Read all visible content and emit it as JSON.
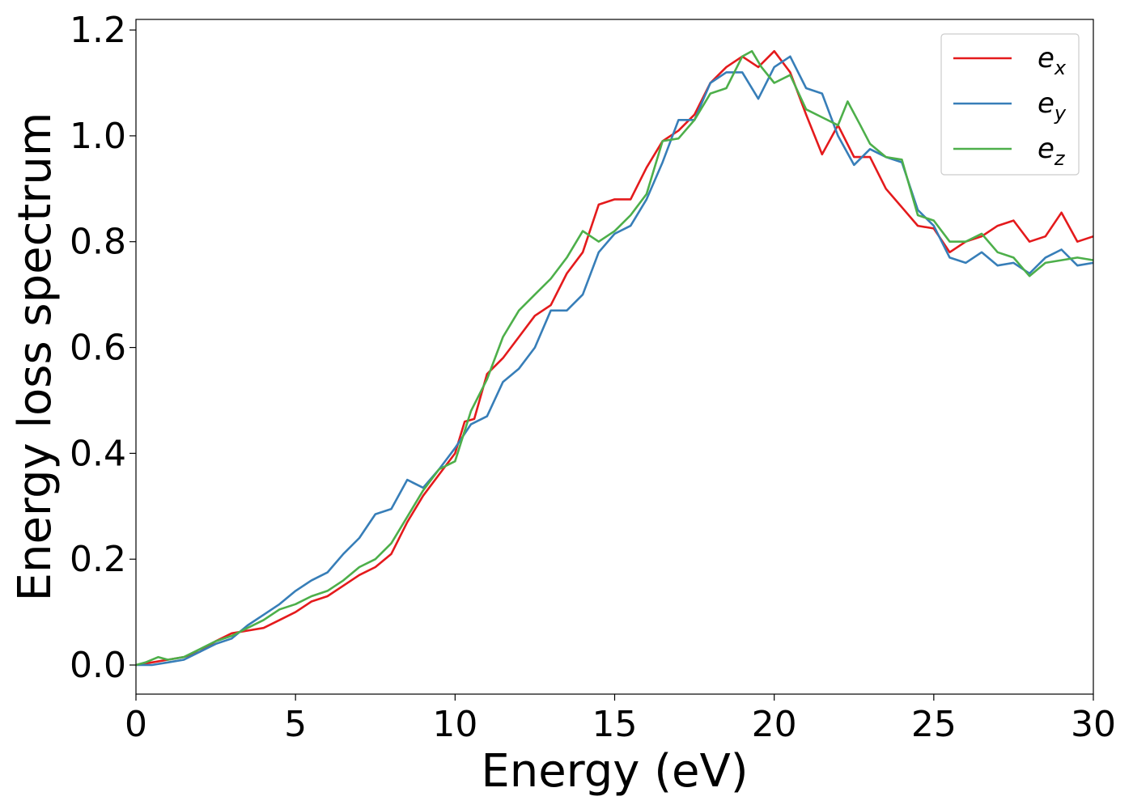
{
  "chart_data": {
    "type": "line",
    "xlabel": "Energy (eV)",
    "ylabel": "Energy loss spectrum",
    "xlim": [
      0,
      30
    ],
    "ylim": [
      -0.055,
      1.22
    ],
    "xticks": [
      0,
      5,
      10,
      15,
      20,
      25,
      30
    ],
    "yticks": [
      0.0,
      0.2,
      0.4,
      0.6,
      0.8,
      1.0,
      1.2
    ],
    "xtick_labels": [
      "0",
      "5",
      "10",
      "15",
      "20",
      "25",
      "30"
    ],
    "ytick_labels": [
      "0.0",
      "0.2",
      "0.4",
      "0.6",
      "0.8",
      "1.0",
      "1.2"
    ],
    "grid": false,
    "legend_position": "top-right",
    "series": [
      {
        "name": "e",
        "subscript": "x",
        "color": "#e41a1c",
        "points": [
          [
            0,
            0
          ],
          [
            0.5,
            0.005
          ],
          [
            1,
            0.01
          ],
          [
            1.5,
            0.015
          ],
          [
            2,
            0.025
          ],
          [
            2.5,
            0.045
          ],
          [
            3,
            0.06
          ],
          [
            3.5,
            0.065
          ],
          [
            4,
            0.07
          ],
          [
            4.5,
            0.085
          ],
          [
            5,
            0.1
          ],
          [
            5.5,
            0.12
          ],
          [
            6,
            0.13
          ],
          [
            6.5,
            0.15
          ],
          [
            7,
            0.17
          ],
          [
            7.5,
            0.185
          ],
          [
            8,
            0.21
          ],
          [
            8.5,
            0.27
          ],
          [
            9,
            0.32
          ],
          [
            9.5,
            0.36
          ],
          [
            10,
            0.4
          ],
          [
            10.3,
            0.46
          ],
          [
            10.6,
            0.465
          ],
          [
            11,
            0.55
          ],
          [
            11.5,
            0.58
          ],
          [
            12,
            0.62
          ],
          [
            12.5,
            0.66
          ],
          [
            13,
            0.68
          ],
          [
            13.5,
            0.74
          ],
          [
            14,
            0.78
          ],
          [
            14.5,
            0.87
          ],
          [
            15,
            0.88
          ],
          [
            15.5,
            0.88
          ],
          [
            16,
            0.94
          ],
          [
            16.5,
            0.99
          ],
          [
            17,
            1.01
          ],
          [
            17.5,
            1.04
          ],
          [
            18,
            1.1
          ],
          [
            18.5,
            1.13
          ],
          [
            19,
            1.15
          ],
          [
            19.5,
            1.13
          ],
          [
            20,
            1.16
          ],
          [
            20.5,
            1.12
          ],
          [
            21,
            1.04
          ],
          [
            21.5,
            0.965
          ],
          [
            22,
            1.02
          ],
          [
            22.5,
            0.96
          ],
          [
            23,
            0.96
          ],
          [
            23.5,
            0.9
          ],
          [
            24,
            0.865
          ],
          [
            24.5,
            0.83
          ],
          [
            25,
            0.825
          ],
          [
            25.5,
            0.78
          ],
          [
            26,
            0.8
          ],
          [
            26.5,
            0.81
          ],
          [
            27,
            0.83
          ],
          [
            27.5,
            0.84
          ],
          [
            28,
            0.8
          ],
          [
            28.5,
            0.81
          ],
          [
            29,
            0.855
          ],
          [
            29.5,
            0.8
          ],
          [
            30,
            0.81
          ]
        ]
      },
      {
        "name": "e",
        "subscript": "y",
        "color": "#377eb8",
        "points": [
          [
            0,
            0
          ],
          [
            0.5,
            0
          ],
          [
            1,
            0.005
          ],
          [
            1.5,
            0.01
          ],
          [
            2,
            0.025
          ],
          [
            2.5,
            0.04
          ],
          [
            3,
            0.05
          ],
          [
            3.5,
            0.075
          ],
          [
            4,
            0.095
          ],
          [
            4.5,
            0.115
          ],
          [
            5,
            0.14
          ],
          [
            5.5,
            0.16
          ],
          [
            6,
            0.175
          ],
          [
            6.5,
            0.21
          ],
          [
            7,
            0.24
          ],
          [
            7.5,
            0.285
          ],
          [
            8,
            0.295
          ],
          [
            8.5,
            0.35
          ],
          [
            9,
            0.335
          ],
          [
            9.5,
            0.37
          ],
          [
            10,
            0.41
          ],
          [
            10.5,
            0.455
          ],
          [
            11,
            0.47
          ],
          [
            11.5,
            0.535
          ],
          [
            12,
            0.56
          ],
          [
            12.5,
            0.6
          ],
          [
            13,
            0.67
          ],
          [
            13.5,
            0.67
          ],
          [
            14,
            0.7
          ],
          [
            14.5,
            0.78
          ],
          [
            15,
            0.815
          ],
          [
            15.5,
            0.83
          ],
          [
            16,
            0.88
          ],
          [
            16.5,
            0.95
          ],
          [
            17,
            1.03
          ],
          [
            17.5,
            1.03
          ],
          [
            18,
            1.1
          ],
          [
            18.5,
            1.12
          ],
          [
            19,
            1.12
          ],
          [
            19.5,
            1.07
          ],
          [
            20,
            1.13
          ],
          [
            20.5,
            1.15
          ],
          [
            21,
            1.09
          ],
          [
            21.5,
            1.08
          ],
          [
            22,
            1.0
          ],
          [
            22.5,
            0.945
          ],
          [
            23,
            0.975
          ],
          [
            23.5,
            0.96
          ],
          [
            24,
            0.95
          ],
          [
            24.5,
            0.86
          ],
          [
            25,
            0.83
          ],
          [
            25.5,
            0.77
          ],
          [
            26,
            0.76
          ],
          [
            26.5,
            0.78
          ],
          [
            27,
            0.755
          ],
          [
            27.5,
            0.76
          ],
          [
            28,
            0.74
          ],
          [
            28.5,
            0.77
          ],
          [
            29,
            0.785
          ],
          [
            29.5,
            0.755
          ],
          [
            30,
            0.76
          ]
        ]
      },
      {
        "name": "e",
        "subscript": "z",
        "color": "#4daf4a",
        "points": [
          [
            0,
            0
          ],
          [
            0.3,
            0.005
          ],
          [
            0.7,
            0.015
          ],
          [
            1,
            0.01
          ],
          [
            1.5,
            0.015
          ],
          [
            2,
            0.03
          ],
          [
            2.5,
            0.045
          ],
          [
            3,
            0.055
          ],
          [
            3.5,
            0.07
          ],
          [
            4,
            0.085
          ],
          [
            4.5,
            0.105
          ],
          [
            5,
            0.115
          ],
          [
            5.5,
            0.13
          ],
          [
            6,
            0.14
          ],
          [
            6.5,
            0.16
          ],
          [
            7,
            0.185
          ],
          [
            7.5,
            0.2
          ],
          [
            8,
            0.23
          ],
          [
            8.5,
            0.28
          ],
          [
            9,
            0.33
          ],
          [
            9.5,
            0.37
          ],
          [
            10,
            0.385
          ],
          [
            10.5,
            0.48
          ],
          [
            11,
            0.54
          ],
          [
            11.5,
            0.62
          ],
          [
            12,
            0.67
          ],
          [
            12.5,
            0.7
          ],
          [
            13,
            0.73
          ],
          [
            13.5,
            0.77
          ],
          [
            14,
            0.82
          ],
          [
            14.5,
            0.8
          ],
          [
            15,
            0.82
          ],
          [
            15.5,
            0.85
          ],
          [
            16,
            0.89
          ],
          [
            16.5,
            0.99
          ],
          [
            17,
            0.995
          ],
          [
            17.5,
            1.03
          ],
          [
            18,
            1.08
          ],
          [
            18.5,
            1.09
          ],
          [
            19,
            1.15
          ],
          [
            19.3,
            1.16
          ],
          [
            19.6,
            1.13
          ],
          [
            20,
            1.1
          ],
          [
            20.5,
            1.115
          ],
          [
            21,
            1.05
          ],
          [
            21.5,
            1.035
          ],
          [
            22,
            1.02
          ],
          [
            22.3,
            1.065
          ],
          [
            22.7,
            1.02
          ],
          [
            23,
            0.985
          ],
          [
            23.5,
            0.96
          ],
          [
            24,
            0.955
          ],
          [
            24.5,
            0.85
          ],
          [
            25,
            0.84
          ],
          [
            25.5,
            0.8
          ],
          [
            26,
            0.8
          ],
          [
            26.5,
            0.815
          ],
          [
            27,
            0.78
          ],
          [
            27.5,
            0.77
          ],
          [
            28,
            0.735
          ],
          [
            28.5,
            0.76
          ],
          [
            29,
            0.765
          ],
          [
            29.5,
            0.77
          ],
          [
            30,
            0.765
          ]
        ]
      }
    ]
  }
}
